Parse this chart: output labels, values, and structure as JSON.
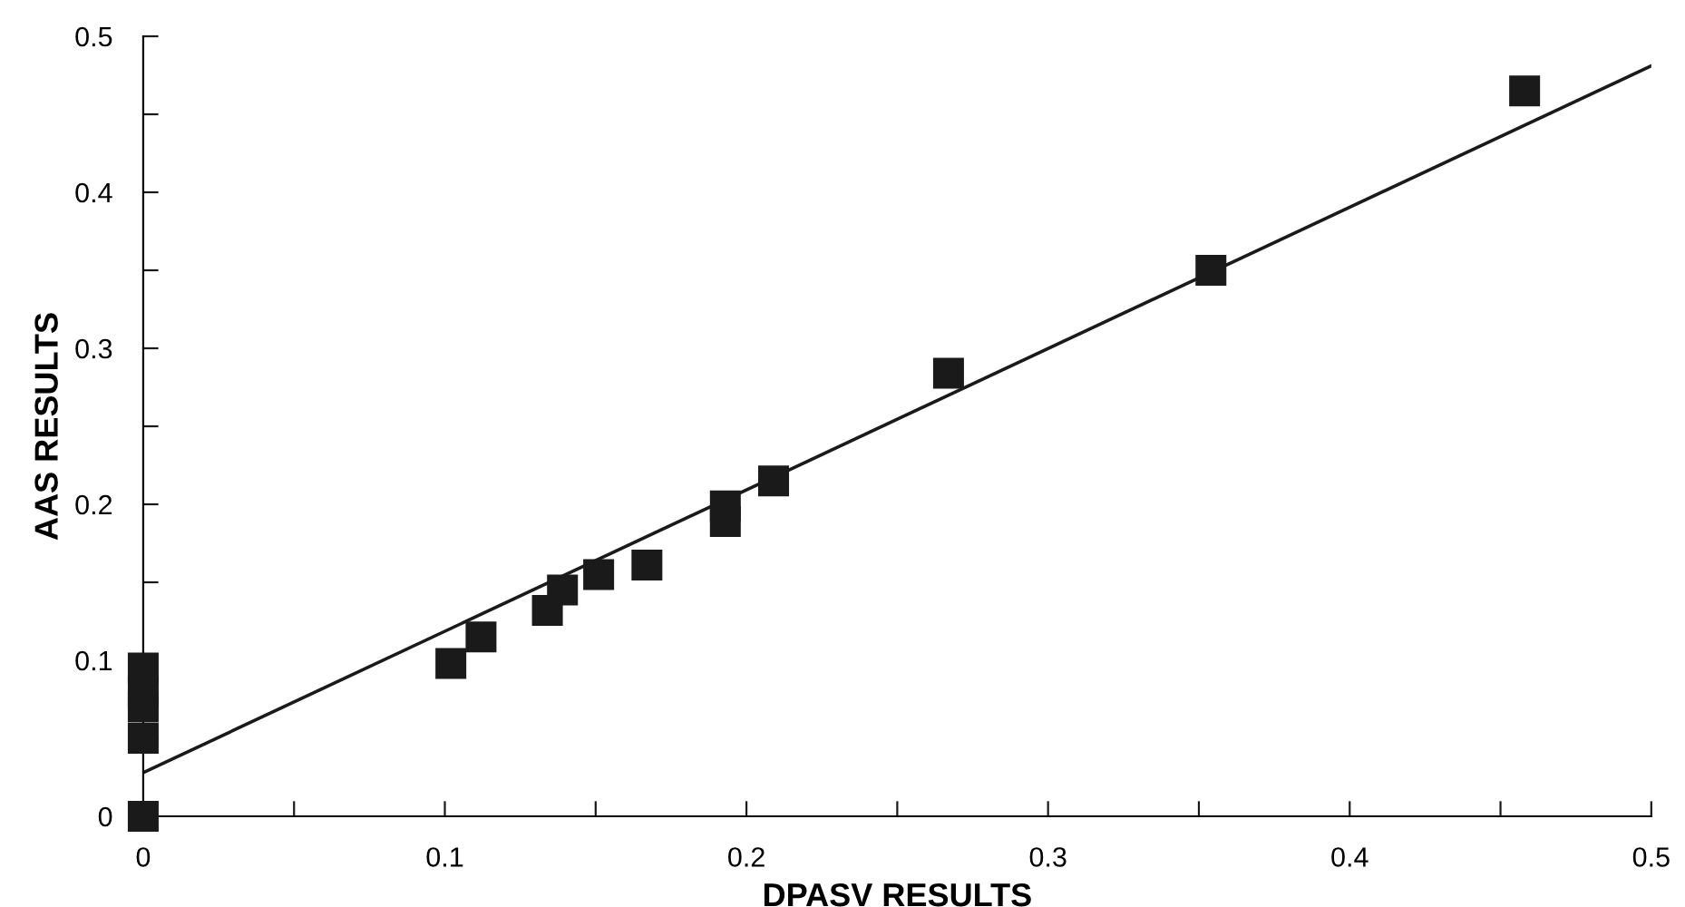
{
  "chart_data": {
    "type": "scatter",
    "xlabel": "DPASV RESULTS",
    "ylabel": "AAS RESULTS",
    "xlim": [
      0,
      0.5
    ],
    "ylim": [
      0,
      0.5
    ],
    "xticks": [
      0,
      {
        "value": 0.05,
        "label": null
      },
      0.1,
      {
        "value": 0.15,
        "label": null
      },
      0.2,
      {
        "value": 0.25,
        "label": null
      },
      0.3,
      {
        "value": 0.35,
        "label": null
      },
      0.4,
      {
        "value": 0.45,
        "label": null
      },
      0.5
    ],
    "yticks": [
      0,
      {
        "value": 0.05,
        "label": null
      },
      0.1,
      {
        "value": 0.15,
        "label": null
      },
      0.2,
      {
        "value": 0.25,
        "label": null
      },
      0.3,
      {
        "value": 0.35,
        "label": null
      },
      0.4,
      {
        "value": 0.45,
        "label": null
      },
      0.5
    ],
    "grid": false,
    "marker": "square",
    "series": [
      {
        "color": "#1a1a1a",
        "x": [
          0,
          0,
          0,
          0,
          0,
          0.102,
          0.112,
          0.134,
          0.139,
          0.151,
          0.167,
          0.193,
          0.193,
          0.209,
          0.267,
          0.354,
          0.458
        ],
        "values": [
          0,
          0.05,
          0.07,
          0.08,
          0.095,
          0.098,
          0.115,
          0.132,
          0.145,
          0.155,
          0.161,
          0.189,
          0.199,
          0.215,
          0.284,
          0.35,
          0.465
        ]
      },
      {
        "type": "line",
        "color": "#1a1a1a",
        "marker": "none",
        "line_style": "solid",
        "x": [
          0,
          0.5
        ],
        "values": [
          0.028,
          0.481
        ]
      }
    ]
  }
}
